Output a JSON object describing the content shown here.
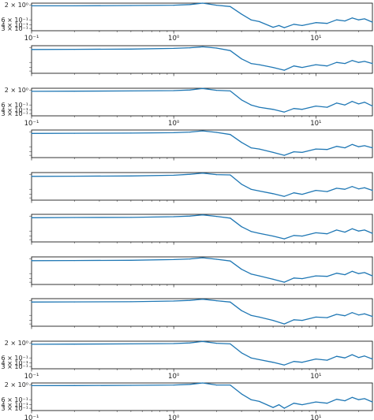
{
  "chart_data": {
    "type": "line",
    "xscale": "log",
    "yscale": "log",
    "xlim": [
      0.1,
      25
    ],
    "ylim": [
      0.25,
      2.3
    ],
    "x_tick_labels": [
      "10⁻¹",
      "10⁰",
      "10¹"
    ],
    "y_tick_labels": [
      "2 × 10⁰",
      "6 × 10⁻¹",
      "4 × 10⁻¹",
      "3 × 10⁻¹"
    ],
    "series_color": "#1f77b4",
    "grid": false,
    "panels": [
      {
        "x_ticks_shown": true,
        "y_ticks_shown": true,
        "x": [
          0.1,
          0.2,
          0.5,
          1.0,
          1.3,
          1.6,
          2.0,
          2.5,
          3.0,
          3.5,
          4.0,
          5.0,
          5.5,
          6.0,
          7.0,
          8.0,
          10.0,
          12.0,
          14.0,
          16.0,
          18.0,
          20.0,
          22.0,
          25.0
        ],
        "y": [
          1.85,
          1.85,
          1.9,
          1.95,
          2.05,
          2.3,
          1.95,
          1.75,
          0.95,
          0.6,
          0.52,
          0.33,
          0.38,
          0.32,
          0.42,
          0.38,
          0.48,
          0.45,
          0.6,
          0.55,
          0.7,
          0.6,
          0.65,
          0.5
        ]
      },
      {
        "x_ticks_shown": false,
        "y_ticks_shown": false,
        "x": [
          0.1,
          0.2,
          0.5,
          1.0,
          1.3,
          1.6,
          2.0,
          2.5,
          3.0,
          3.5,
          4.0,
          5.0,
          6.0,
          7.0,
          8.0,
          10.0,
          12.0,
          14.0,
          16.0,
          18.0,
          20.0,
          22.0,
          25.0
        ],
        "y": [
          1.7,
          1.72,
          1.75,
          1.85,
          1.95,
          2.1,
          1.9,
          1.55,
          0.8,
          0.55,
          0.5,
          0.4,
          0.32,
          0.45,
          0.4,
          0.5,
          0.45,
          0.6,
          0.55,
          0.7,
          0.6,
          0.65,
          0.55
        ]
      },
      {
        "x_ticks_shown": true,
        "y_ticks_shown": true,
        "x": [
          0.1,
          0.2,
          0.5,
          1.0,
          1.3,
          1.6,
          2.0,
          2.5,
          3.0,
          3.5,
          4.0,
          5.0,
          6.0,
          7.0,
          8.0,
          10.0,
          12.0,
          14.0,
          16.0,
          18.0,
          20.0,
          22.0,
          25.0
        ],
        "y": [
          1.8,
          1.82,
          1.85,
          1.9,
          2.0,
          2.25,
          1.95,
          1.85,
          0.9,
          0.6,
          0.5,
          0.42,
          0.34,
          0.45,
          0.42,
          0.55,
          0.5,
          0.7,
          0.6,
          0.8,
          0.65,
          0.75,
          0.55
        ]
      },
      {
        "x_ticks_shown": false,
        "y_ticks_shown": false,
        "x": [
          0.1,
          0.2,
          0.5,
          1.0,
          1.3,
          1.6,
          2.0,
          2.5,
          3.0,
          3.5,
          4.0,
          5.0,
          6.0,
          7.0,
          8.0,
          10.0,
          12.0,
          14.0,
          16.0,
          18.0,
          20.0,
          22.0,
          25.0
        ],
        "y": [
          1.75,
          1.77,
          1.8,
          1.85,
          1.95,
          2.15,
          1.9,
          1.6,
          0.85,
          0.55,
          0.5,
          0.38,
          0.3,
          0.4,
          0.38,
          0.5,
          0.48,
          0.62,
          0.55,
          0.72,
          0.6,
          0.65,
          0.55
        ]
      },
      {
        "x_ticks_shown": false,
        "y_ticks_shown": false,
        "x": [
          0.1,
          0.2,
          0.5,
          1.0,
          1.3,
          1.6,
          2.0,
          2.5,
          3.0,
          3.5,
          4.0,
          5.0,
          6.0,
          7.0,
          8.0,
          10.0,
          12.0,
          14.0,
          16.0,
          18.0,
          20.0,
          22.0,
          25.0
        ],
        "y": [
          1.7,
          1.72,
          1.75,
          1.85,
          2.0,
          2.2,
          1.95,
          1.9,
          0.9,
          0.6,
          0.52,
          0.42,
          0.34,
          0.45,
          0.4,
          0.55,
          0.5,
          0.65,
          0.6,
          0.75,
          0.62,
          0.68,
          0.55
        ]
      },
      {
        "x_ticks_shown": false,
        "y_ticks_shown": false,
        "x": [
          0.1,
          0.2,
          0.5,
          1.0,
          1.3,
          1.6,
          2.0,
          2.5,
          3.0,
          3.5,
          4.0,
          5.0,
          6.0,
          7.0,
          8.0,
          10.0,
          12.0,
          14.0,
          16.0,
          18.0,
          20.0,
          22.0,
          25.0
        ],
        "y": [
          1.75,
          1.78,
          1.8,
          1.9,
          2.0,
          2.2,
          1.95,
          1.7,
          0.85,
          0.58,
          0.5,
          0.4,
          0.32,
          0.42,
          0.4,
          0.52,
          0.48,
          0.65,
          0.55,
          0.72,
          0.6,
          0.65,
          0.5
        ]
      },
      {
        "x_ticks_shown": false,
        "y_ticks_shown": false,
        "x": [
          0.1,
          0.2,
          0.5,
          1.0,
          1.3,
          1.6,
          2.0,
          2.5,
          3.0,
          3.5,
          4.0,
          5.0,
          6.0,
          7.0,
          8.0,
          10.0,
          12.0,
          14.0,
          16.0,
          18.0,
          20.0,
          22.0,
          25.0
        ],
        "y": [
          1.7,
          1.72,
          1.75,
          1.85,
          1.95,
          2.15,
          1.9,
          1.65,
          0.85,
          0.58,
          0.5,
          0.38,
          0.3,
          0.42,
          0.4,
          0.5,
          0.48,
          0.62,
          0.55,
          0.72,
          0.6,
          0.65,
          0.5
        ]
      },
      {
        "x_ticks_shown": false,
        "y_ticks_shown": false,
        "x": [
          0.1,
          0.2,
          0.5,
          1.0,
          1.3,
          1.6,
          2.0,
          2.5,
          3.0,
          3.5,
          4.0,
          5.0,
          6.0,
          7.0,
          8.0,
          10.0,
          12.0,
          14.0,
          16.0,
          18.0,
          20.0,
          22.0,
          25.0
        ],
        "y": [
          1.75,
          1.77,
          1.8,
          1.9,
          2.0,
          2.2,
          1.95,
          1.75,
          0.88,
          0.6,
          0.52,
          0.4,
          0.3,
          0.42,
          0.4,
          0.52,
          0.5,
          0.65,
          0.58,
          0.75,
          0.62,
          0.68,
          0.55
        ]
      },
      {
        "x_ticks_shown": true,
        "y_ticks_shown": true,
        "x": [
          0.1,
          0.2,
          0.5,
          1.0,
          1.3,
          1.6,
          2.0,
          2.5,
          3.0,
          3.5,
          4.0,
          5.0,
          6.0,
          7.0,
          8.0,
          10.0,
          12.0,
          14.0,
          16.0,
          18.0,
          20.0,
          22.0,
          25.0
        ],
        "y": [
          1.8,
          1.82,
          1.85,
          1.9,
          2.0,
          2.25,
          1.95,
          1.85,
          0.9,
          0.6,
          0.52,
          0.42,
          0.34,
          0.45,
          0.42,
          0.55,
          0.5,
          0.68,
          0.6,
          0.78,
          0.62,
          0.7,
          0.55
        ]
      },
      {
        "x_ticks_shown": true,
        "y_ticks_shown": true,
        "x": [
          0.1,
          0.2,
          0.5,
          1.0,
          1.3,
          1.6,
          2.0,
          2.5,
          3.0,
          3.5,
          4.0,
          5.0,
          5.5,
          6.0,
          7.0,
          8.0,
          10.0,
          12.0,
          14.0,
          16.0,
          18.0,
          20.0,
          22.0,
          25.0
        ],
        "y": [
          1.85,
          1.87,
          1.9,
          1.95,
          2.05,
          2.3,
          1.95,
          1.95,
          0.95,
          0.6,
          0.52,
          0.32,
          0.4,
          0.3,
          0.45,
          0.4,
          0.5,
          0.45,
          0.62,
          0.55,
          0.72,
          0.6,
          0.65,
          0.5
        ]
      }
    ]
  }
}
